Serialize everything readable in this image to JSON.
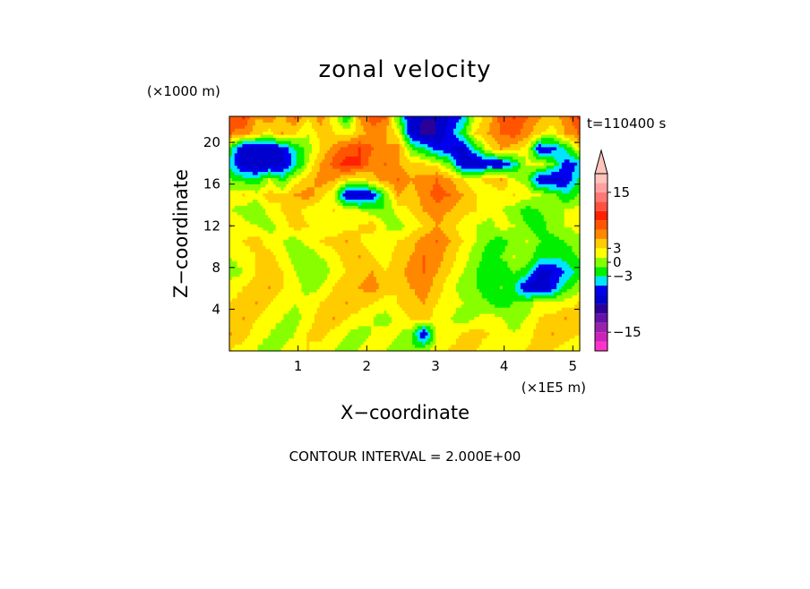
{
  "chart_data": {
    "type": "heatmap",
    "title": "zonal velocity",
    "xlabel": "X−coordinate",
    "ylabel": "Z−coordinate",
    "x_unit": "(×1E5 m)",
    "y_unit": "(×1000 m)",
    "time_label": "t=110400 s",
    "contour_interval_text": "CONTOUR INTERVAL = 2.000E+00",
    "xlim": [
      0,
      5.1
    ],
    "ylim": [
      0,
      22.5
    ],
    "x_ticks": [
      1,
      2,
      3,
      4,
      5
    ],
    "y_ticks": [
      4,
      8,
      12,
      16,
      20
    ],
    "colorbar": {
      "levels": [
        -19,
        -17,
        -15,
        -13,
        -11,
        -9,
        -7,
        -5,
        -3,
        -1,
        1,
        3,
        5,
        7,
        9,
        11,
        13,
        15,
        17,
        19
      ],
      "extend": "max",
      "tick_values": [
        15,
        3,
        0,
        -3,
        -15
      ],
      "tick_labels": [
        "15",
        "3",
        "0",
        "−3",
        "−15"
      ],
      "colors": [
        "#ff33cc",
        "#cc22bb",
        "#9922aa",
        "#6611aa",
        "#2a0099",
        "#0000cc",
        "#0000ee",
        "#00e5ff",
        "#00f000",
        "#88ff00",
        "#ffff00",
        "#ffcc00",
        "#ff8800",
        "#ff5500",
        "#ff2200",
        "#ff5040",
        "#ff7878",
        "#ffa0a0",
        "#ffc4bc"
      ]
    },
    "field_rows_top_to_bottom": [
      [
        8,
        9,
        5,
        6,
        4,
        7,
        3,
        6,
        2,
        -3,
        5,
        8,
        7,
        -1,
        -8,
        -9,
        -9,
        -7,
        -5,
        2,
        4,
        8,
        9,
        7,
        5,
        4,
        6,
        9
      ],
      [
        7,
        6,
        4,
        2,
        5,
        3,
        1,
        4,
        3,
        2,
        4,
        6,
        5,
        2,
        -7,
        -10,
        -9,
        -6,
        -2,
        3,
        5,
        7,
        8,
        6,
        3,
        2,
        5,
        7
      ],
      [
        -2,
        -9,
        -9,
        -8,
        -7,
        -3,
        0,
        3,
        6,
        8,
        9,
        7,
        5,
        6,
        -1,
        -3,
        -6,
        -7,
        -8,
        -3,
        2,
        5,
        4,
        2,
        -7,
        -6,
        -3,
        2
      ],
      [
        -4,
        -8,
        -9,
        -9,
        -8,
        -4,
        1,
        5,
        8,
        10,
        9,
        6,
        7,
        5,
        4,
        3,
        2,
        -1,
        -8,
        -9,
        -7,
        -8,
        -4,
        1,
        2,
        -1,
        -6,
        -5
      ],
      [
        -1,
        -2,
        -3,
        1,
        -2,
        2,
        4,
        6,
        5,
        3,
        2,
        4,
        6,
        7,
        5,
        6,
        7,
        5,
        3,
        2,
        4,
        5,
        1,
        0,
        -8,
        -8,
        -7,
        -3
      ],
      [
        2,
        3,
        2,
        4,
        3,
        5,
        6,
        4,
        1,
        -8,
        -9,
        -7,
        -1,
        5,
        4,
        6,
        8,
        7,
        5,
        3,
        1,
        2,
        3,
        2,
        1,
        0,
        -3,
        -1
      ],
      [
        1,
        0,
        -1,
        2,
        3,
        4,
        2,
        1,
        3,
        2,
        1,
        0,
        -1,
        2,
        3,
        5,
        6,
        5,
        4,
        3,
        2,
        1,
        0,
        -2,
        -1,
        0,
        1,
        2
      ],
      [
        3,
        2,
        1,
        0,
        2,
        4,
        3,
        2,
        1,
        2,
        3,
        4,
        1,
        0,
        2,
        3,
        5,
        4,
        2,
        1,
        0,
        2,
        1,
        -1,
        -2,
        0,
        1,
        2
      ],
      [
        2,
        3,
        4,
        2,
        1,
        0,
        2,
        3,
        4,
        5,
        3,
        2,
        1,
        3,
        4,
        6,
        7,
        5,
        3,
        1,
        -1,
        -2,
        0,
        1,
        -1,
        -2,
        -1,
        0
      ],
      [
        1,
        2,
        3,
        4,
        2,
        0,
        -1,
        1,
        2,
        4,
        5,
        3,
        2,
        4,
        5,
        7,
        6,
        4,
        2,
        0,
        -2,
        -1,
        1,
        0,
        -2,
        -3,
        -2,
        -1
      ],
      [
        0,
        1,
        3,
        4,
        3,
        1,
        0,
        -1,
        2,
        3,
        4,
        5,
        3,
        4,
        6,
        7,
        5,
        3,
        1,
        -1,
        -2,
        -3,
        -1,
        -2,
        -8,
        -7,
        -5,
        -2
      ],
      [
        2,
        3,
        4,
        5,
        3,
        2,
        0,
        1,
        3,
        4,
        5,
        6,
        4,
        3,
        5,
        6,
        4,
        2,
        0,
        -1,
        -2,
        -1,
        -3,
        -8,
        -9,
        -6,
        -2,
        0
      ],
      [
        3,
        4,
        5,
        3,
        2,
        1,
        2,
        3,
        4,
        5,
        4,
        3,
        2,
        3,
        4,
        5,
        3,
        2,
        1,
        0,
        -1,
        -2,
        -1,
        0,
        2,
        1,
        2,
        3
      ],
      [
        4,
        5,
        3,
        2,
        1,
        0,
        2,
        4,
        5,
        3,
        2,
        1,
        0,
        2,
        3,
        4,
        2,
        1,
        0,
        1,
        2,
        1,
        0,
        1,
        3,
        4,
        5,
        4
      ],
      [
        5,
        4,
        2,
        1,
        0,
        1,
        3,
        4,
        2,
        1,
        0,
        1,
        2,
        1,
        0,
        -8,
        1,
        2,
        3,
        4,
        3,
        2,
        1,
        2,
        4,
        5,
        4,
        3
      ],
      [
        3,
        2,
        1,
        0,
        1,
        2,
        3,
        2,
        1,
        0,
        1,
        2,
        1,
        0,
        -1,
        0,
        2,
        3,
        4,
        3,
        2,
        1,
        2,
        3,
        4,
        3,
        2,
        2
      ]
    ]
  }
}
